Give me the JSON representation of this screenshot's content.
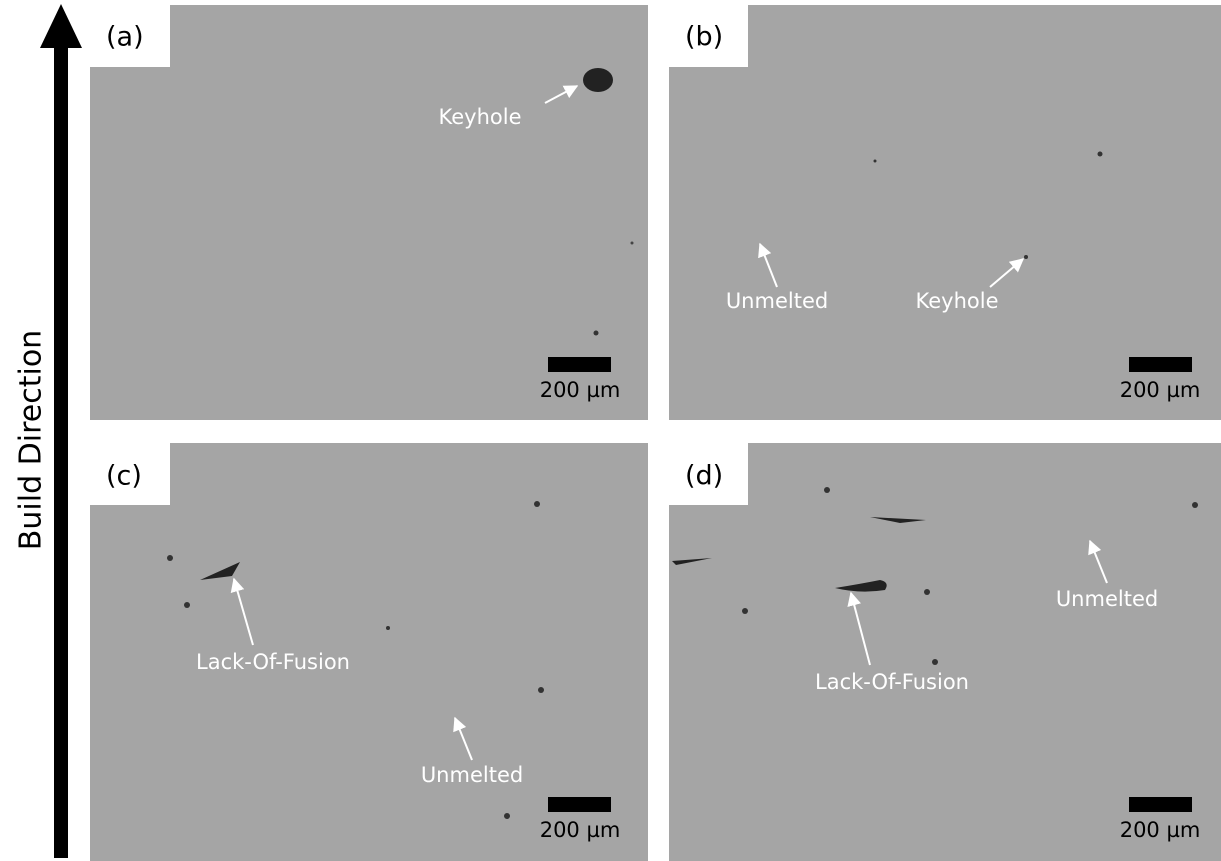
{
  "build_direction": "Build Direction",
  "panels": [
    {
      "label": "(a)",
      "annotations": [
        "Keyhole"
      ],
      "scale_bar": "200 µm"
    },
    {
      "label": "(b)",
      "annotations": [
        "Unmelted",
        "Keyhole"
      ],
      "scale_bar": "200 µm"
    },
    {
      "label": "(c)",
      "annotations": [
        "Lack-Of-Fusion",
        "Unmelted"
      ],
      "scale_bar": "200 µm"
    },
    {
      "label": "(d)",
      "annotations": [
        "Lack-Of-Fusion",
        "Unmelted"
      ],
      "scale_bar": "200 µm"
    }
  ]
}
